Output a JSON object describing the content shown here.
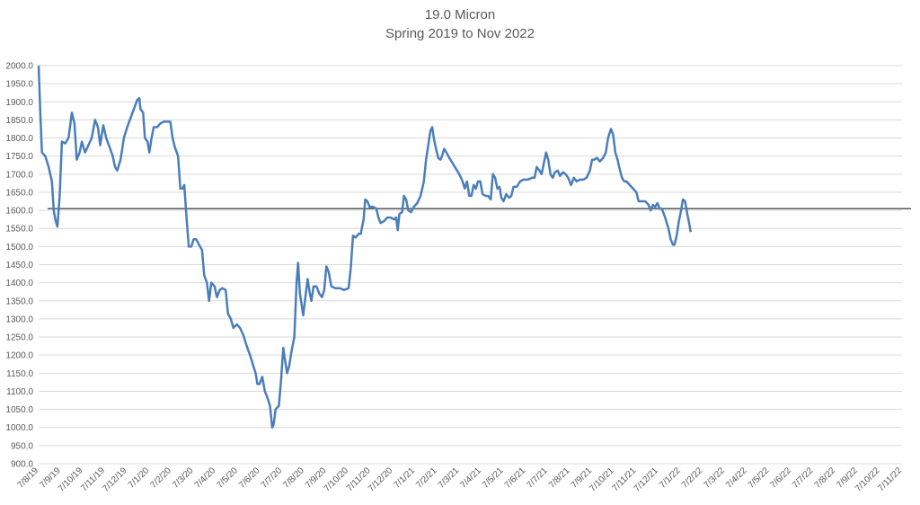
{
  "chart_data": {
    "type": "line",
    "title": "19.0 Micron",
    "subtitle": "Spring 2019 to Nov 2022",
    "xlabel": "",
    "ylabel": "",
    "ylim": [
      900,
      2000
    ],
    "yticks": [
      "900.0",
      "950.0",
      "1000.0",
      "1050.0",
      "1100.0",
      "1150.0",
      "1200.0",
      "1250.0",
      "1300.0",
      "1350.0",
      "1400.0",
      "1450.0",
      "1500.0",
      "1550.0",
      "1600.0",
      "1650.0",
      "1700.0",
      "1750.0",
      "1800.0",
      "1850.0",
      "1900.0",
      "1950.0",
      "2000.0"
    ],
    "xticks": [
      "7/8/19",
      "7/9/19",
      "7/10/19",
      "7/11/19",
      "7/12/19",
      "7/1/20",
      "7/2/20",
      "7/3/20",
      "7/4/20",
      "7/5/20",
      "7/6/20",
      "7/7/20",
      "7/8/20",
      "7/9/20",
      "7/10/20",
      "7/11/20",
      "7/12/20",
      "7/1/21",
      "7/2/21",
      "7/3/21",
      "7/4/21",
      "7/5/21",
      "7/6/21",
      "7/7/21",
      "7/8/21",
      "7/9/21",
      "7/10/21",
      "7/11/21",
      "7/12/21",
      "7/1/22",
      "7/2/22",
      "7/3/22",
      "7/4/22",
      "7/5/22",
      "7/6/22",
      "7/7/22",
      "7/8/22",
      "7/9/22",
      "7/10/22",
      "7/11/22"
    ],
    "reference_line": 1605,
    "grid": true,
    "line_color": "#4a7ebb",
    "reference_color": "#000000",
    "series": [
      {
        "points": [
          [
            0.0,
            2000
          ],
          [
            0.08,
            1860
          ],
          [
            0.15,
            1760
          ],
          [
            0.3,
            1750
          ],
          [
            0.45,
            1720
          ],
          [
            0.6,
            1680
          ],
          [
            0.68,
            1600
          ],
          [
            0.75,
            1575
          ],
          [
            0.85,
            1555
          ],
          [
            0.95,
            1640
          ],
          [
            1.05,
            1790
          ],
          [
            1.2,
            1785
          ],
          [
            1.35,
            1800
          ],
          [
            1.5,
            1870
          ],
          [
            1.62,
            1840
          ],
          [
            1.72,
            1740
          ],
          [
            1.85,
            1760
          ],
          [
            1.95,
            1790
          ],
          [
            2.1,
            1760
          ],
          [
            2.25,
            1780
          ],
          [
            2.4,
            1800
          ],
          [
            2.55,
            1850
          ],
          [
            2.68,
            1830
          ],
          [
            2.78,
            1780
          ],
          [
            2.92,
            1835
          ],
          [
            3.05,
            1800
          ],
          [
            3.2,
            1775
          ],
          [
            3.35,
            1750
          ],
          [
            3.45,
            1720
          ],
          [
            3.55,
            1710
          ],
          [
            3.7,
            1740
          ],
          [
            3.85,
            1800
          ],
          [
            4.0,
            1830
          ],
          [
            4.15,
            1855
          ],
          [
            4.3,
            1880
          ],
          [
            4.45,
            1905
          ],
          [
            4.55,
            1910
          ],
          [
            4.6,
            1880
          ],
          [
            4.72,
            1870
          ],
          [
            4.8,
            1800
          ],
          [
            4.92,
            1790
          ],
          [
            5.0,
            1760
          ],
          [
            5.1,
            1800
          ],
          [
            5.2,
            1830
          ],
          [
            5.35,
            1830
          ],
          [
            5.5,
            1840
          ],
          [
            5.65,
            1845
          ],
          [
            5.8,
            1845
          ],
          [
            5.95,
            1845
          ],
          [
            6.05,
            1800
          ],
          [
            6.15,
            1775
          ],
          [
            6.3,
            1750
          ],
          [
            6.4,
            1660
          ],
          [
            6.5,
            1660
          ],
          [
            6.58,
            1670
          ],
          [
            6.68,
            1580
          ],
          [
            6.78,
            1500
          ],
          [
            6.9,
            1500
          ],
          [
            7.0,
            1520
          ],
          [
            7.12,
            1520
          ],
          [
            7.25,
            1505
          ],
          [
            7.38,
            1490
          ],
          [
            7.48,
            1420
          ],
          [
            7.6,
            1400
          ],
          [
            7.7,
            1350
          ],
          [
            7.8,
            1400
          ],
          [
            7.95,
            1390
          ],
          [
            8.05,
            1360
          ],
          [
            8.18,
            1380
          ],
          [
            8.3,
            1385
          ],
          [
            8.45,
            1380
          ],
          [
            8.55,
            1315
          ],
          [
            8.68,
            1300
          ],
          [
            8.8,
            1275
          ],
          [
            8.95,
            1285
          ],
          [
            9.1,
            1275
          ],
          [
            9.25,
            1255
          ],
          [
            9.4,
            1225
          ],
          [
            9.55,
            1200
          ],
          [
            9.7,
            1170
          ],
          [
            9.8,
            1150
          ],
          [
            9.88,
            1120
          ],
          [
            9.98,
            1120
          ],
          [
            10.1,
            1140
          ],
          [
            10.22,
            1100
          ],
          [
            10.32,
            1085
          ],
          [
            10.45,
            1060
          ],
          [
            10.55,
            1000
          ],
          [
            10.62,
            1010
          ],
          [
            10.7,
            1050
          ],
          [
            10.85,
            1060
          ],
          [
            10.95,
            1130
          ],
          [
            11.05,
            1220
          ],
          [
            11.12,
            1190
          ],
          [
            11.22,
            1150
          ],
          [
            11.32,
            1170
          ],
          [
            11.42,
            1210
          ],
          [
            11.55,
            1250
          ],
          [
            11.65,
            1400
          ],
          [
            11.72,
            1455
          ],
          [
            11.8,
            1370
          ],
          [
            11.88,
            1340
          ],
          [
            11.95,
            1310
          ],
          [
            12.05,
            1360
          ],
          [
            12.15,
            1410
          ],
          [
            12.25,
            1370
          ],
          [
            12.32,
            1350
          ],
          [
            12.42,
            1390
          ],
          [
            12.55,
            1390
          ],
          [
            12.68,
            1370
          ],
          [
            12.8,
            1360
          ],
          [
            12.9,
            1380
          ],
          [
            13.0,
            1445
          ],
          [
            13.1,
            1430
          ],
          [
            13.22,
            1390
          ],
          [
            13.4,
            1385
          ],
          [
            13.6,
            1385
          ],
          [
            13.8,
            1380
          ],
          [
            14.0,
            1385
          ],
          [
            14.1,
            1440
          ],
          [
            14.2,
            1530
          ],
          [
            14.32,
            1525
          ],
          [
            14.45,
            1535
          ],
          [
            14.55,
            1535
          ],
          [
            14.68,
            1575
          ],
          [
            14.75,
            1630
          ],
          [
            14.85,
            1625
          ],
          [
            14.95,
            1610
          ],
          [
            15.1,
            1610
          ],
          [
            15.25,
            1605
          ],
          [
            15.35,
            1580
          ],
          [
            15.45,
            1565
          ],
          [
            15.6,
            1570
          ],
          [
            15.75,
            1580
          ],
          [
            15.9,
            1580
          ],
          [
            16.05,
            1575
          ],
          [
            16.15,
            1580
          ],
          [
            16.22,
            1545
          ],
          [
            16.3,
            1590
          ],
          [
            16.42,
            1595
          ],
          [
            16.5,
            1640
          ],
          [
            16.6,
            1630
          ],
          [
            16.7,
            1600
          ],
          [
            16.82,
            1595
          ],
          [
            16.95,
            1610
          ],
          [
            17.1,
            1620
          ],
          [
            17.25,
            1640
          ],
          [
            17.4,
            1680
          ],
          [
            17.5,
            1740
          ],
          [
            17.6,
            1780
          ],
          [
            17.7,
            1820
          ],
          [
            17.78,
            1830
          ],
          [
            17.85,
            1800
          ],
          [
            17.95,
            1770
          ],
          [
            18.05,
            1745
          ],
          [
            18.15,
            1740
          ],
          [
            18.22,
            1750
          ],
          [
            18.32,
            1770
          ],
          [
            18.42,
            1760
          ],
          [
            18.55,
            1745
          ],
          [
            18.7,
            1730
          ],
          [
            18.85,
            1715
          ],
          [
            19.0,
            1700
          ],
          [
            19.15,
            1680
          ],
          [
            19.25,
            1660
          ],
          [
            19.35,
            1680
          ],
          [
            19.45,
            1640
          ],
          [
            19.55,
            1640
          ],
          [
            19.65,
            1670
          ],
          [
            19.75,
            1660
          ],
          [
            19.85,
            1680
          ],
          [
            19.95,
            1680
          ],
          [
            20.05,
            1645
          ],
          [
            20.18,
            1640
          ],
          [
            20.3,
            1640
          ],
          [
            20.42,
            1630
          ],
          [
            20.52,
            1700
          ],
          [
            20.62,
            1690
          ],
          [
            20.72,
            1660
          ],
          [
            20.82,
            1665
          ],
          [
            20.9,
            1635
          ],
          [
            21.0,
            1625
          ],
          [
            21.12,
            1645
          ],
          [
            21.25,
            1635
          ],
          [
            21.35,
            1640
          ],
          [
            21.45,
            1665
          ],
          [
            21.6,
            1665
          ],
          [
            21.75,
            1680
          ],
          [
            21.9,
            1685
          ],
          [
            22.1,
            1685
          ],
          [
            22.3,
            1690
          ],
          [
            22.4,
            1690
          ],
          [
            22.5,
            1720
          ],
          [
            22.62,
            1710
          ],
          [
            22.72,
            1700
          ],
          [
            22.82,
            1730
          ],
          [
            22.92,
            1760
          ],
          [
            23.02,
            1740
          ],
          [
            23.12,
            1700
          ],
          [
            23.22,
            1690
          ],
          [
            23.32,
            1705
          ],
          [
            23.45,
            1710
          ],
          [
            23.55,
            1695
          ],
          [
            23.68,
            1705
          ],
          [
            23.8,
            1700
          ],
          [
            23.92,
            1690
          ],
          [
            24.05,
            1670
          ],
          [
            24.18,
            1690
          ],
          [
            24.3,
            1680
          ],
          [
            24.45,
            1685
          ],
          [
            24.6,
            1685
          ],
          [
            24.75,
            1690
          ],
          [
            24.9,
            1710
          ],
          [
            25.0,
            1740
          ],
          [
            25.1,
            1740
          ],
          [
            25.22,
            1745
          ],
          [
            25.35,
            1735
          ],
          [
            25.5,
            1745
          ],
          [
            25.62,
            1760
          ],
          [
            25.72,
            1800
          ],
          [
            25.85,
            1825
          ],
          [
            25.95,
            1810
          ],
          [
            26.05,
            1760
          ],
          [
            26.15,
            1740
          ],
          [
            26.22,
            1720
          ],
          [
            26.35,
            1690
          ],
          [
            26.45,
            1680
          ],
          [
            26.55,
            1680
          ],
          [
            26.7,
            1670
          ],
          [
            26.85,
            1660
          ],
          [
            27.0,
            1650
          ],
          [
            27.1,
            1625
          ],
          [
            27.25,
            1625
          ],
          [
            27.4,
            1625
          ],
          [
            27.55,
            1615
          ],
          [
            27.65,
            1600
          ],
          [
            27.75,
            1615
          ],
          [
            27.85,
            1610
          ],
          [
            27.95,
            1620
          ],
          [
            28.05,
            1605
          ],
          [
            28.15,
            1605
          ],
          [
            28.3,
            1580
          ],
          [
            28.45,
            1550
          ],
          [
            28.55,
            1520
          ],
          [
            28.65,
            1505
          ],
          [
            28.72,
            1505
          ],
          [
            28.82,
            1530
          ],
          [
            28.92,
            1570
          ],
          [
            29.02,
            1600
          ],
          [
            29.1,
            1630
          ],
          [
            29.2,
            1625
          ],
          [
            29.3,
            1590
          ],
          [
            29.4,
            1560
          ],
          [
            29.45,
            1540
          ]
        ]
      }
    ]
  }
}
